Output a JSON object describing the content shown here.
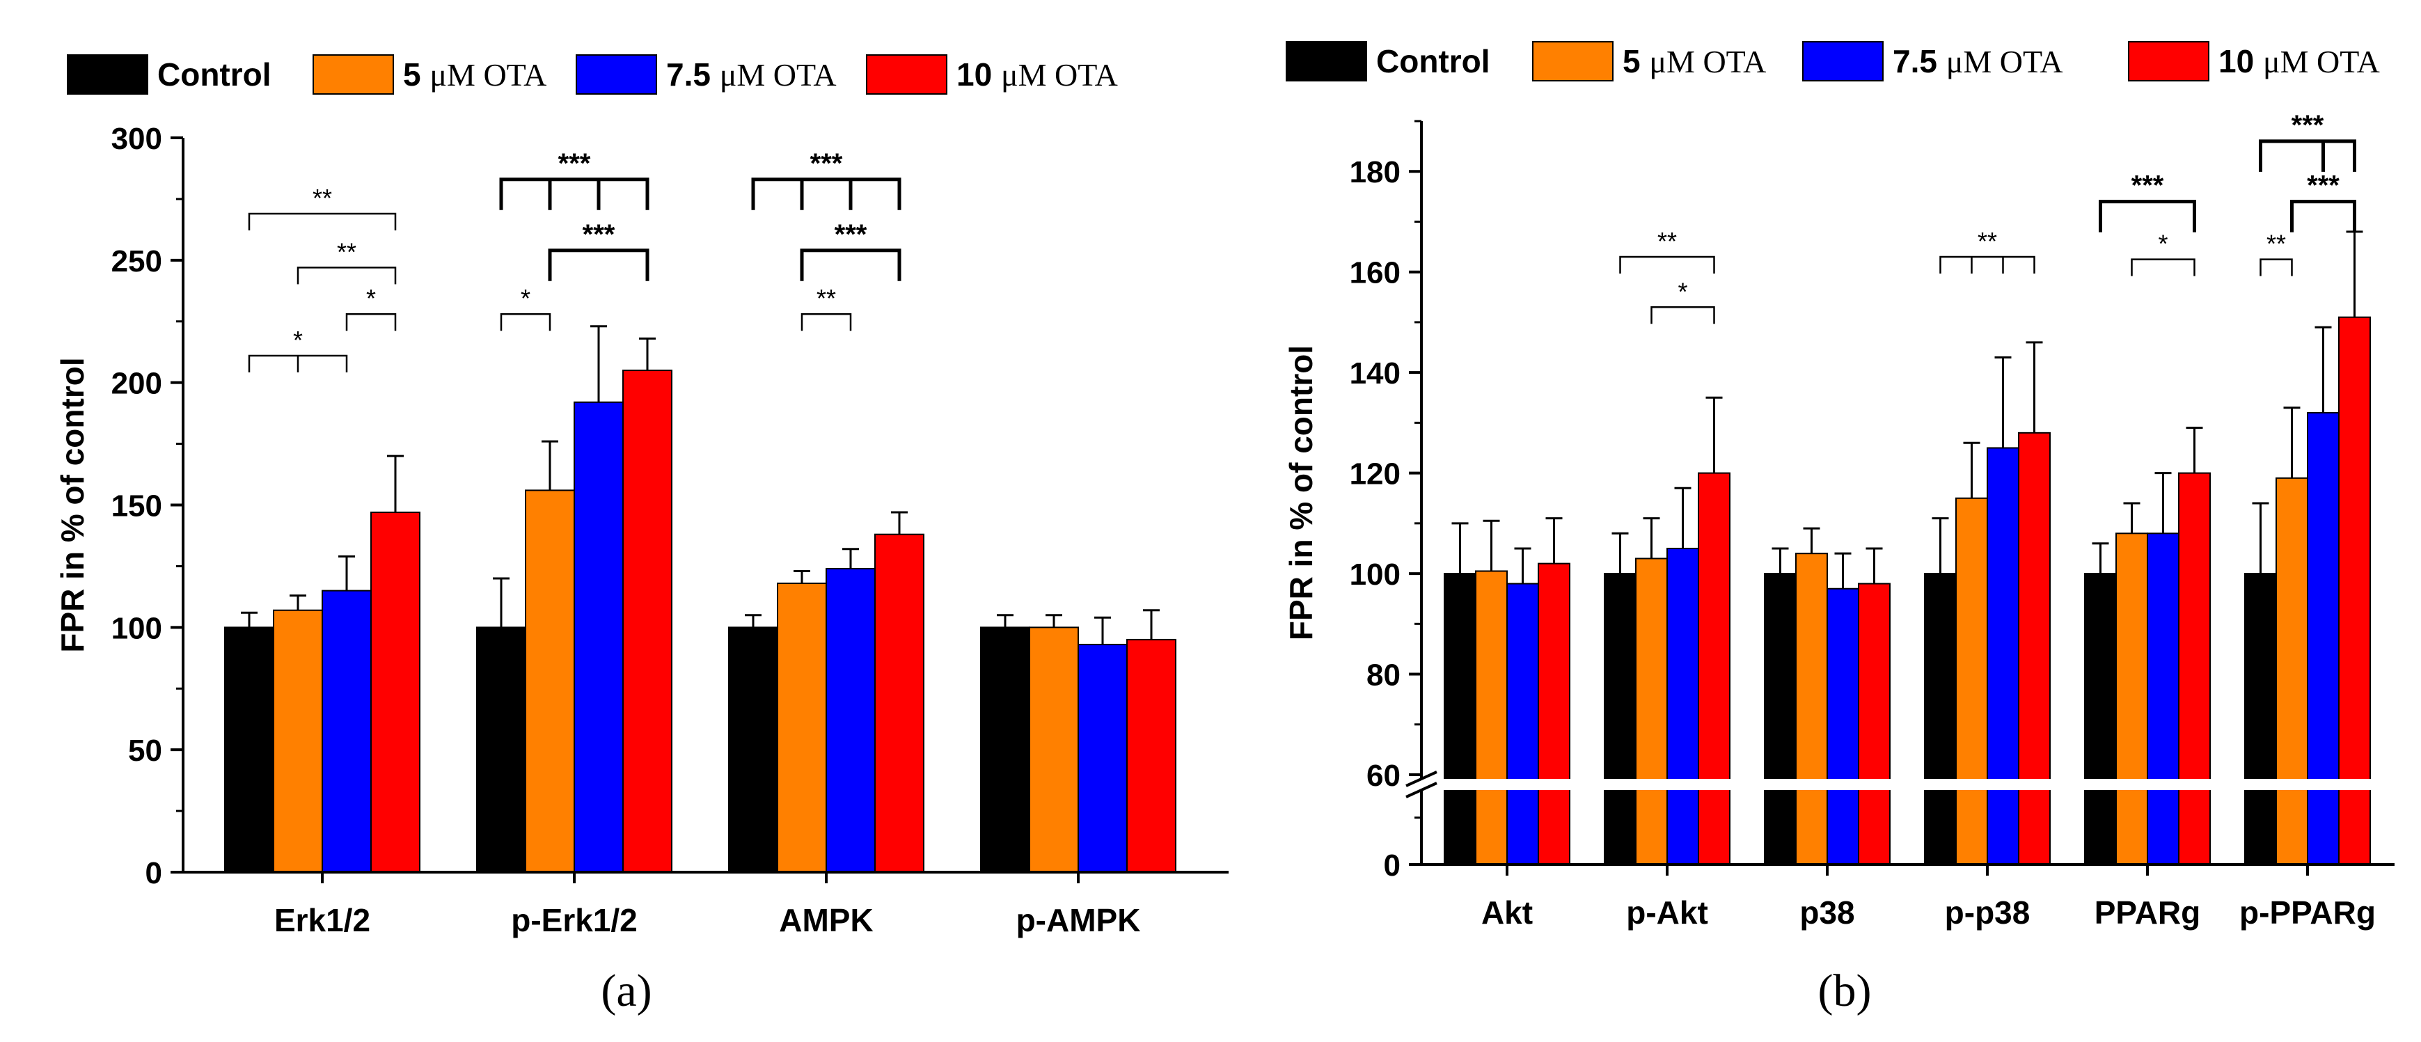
{
  "legend": [
    {
      "name": "Control",
      "prefix": "Control",
      "unit": ""
    },
    {
      "name": "5 μM OTA",
      "prefix": "5 ",
      "unit": "μM OTA"
    },
    {
      "name": "7.5 μM OTA",
      "prefix": "7.5 ",
      "unit": "μM OTA"
    },
    {
      "name": "10 μM OTA",
      "prefix": "10 ",
      "unit": "μM OTA"
    }
  ],
  "colors": [
    "#000000",
    "#ff8000",
    "#0000ff",
    "#ff0000"
  ],
  "chart_data": [
    {
      "type": "bar",
      "panel_label": "(a)",
      "ylabel": "FPR in % of control",
      "ylim": [
        0,
        300
      ],
      "yticks": [
        0,
        50,
        100,
        150,
        200,
        250,
        300
      ],
      "categories": [
        "Erk1/2",
        "p-Erk1/2",
        "AMPK",
        "p-AMPK"
      ],
      "series": [
        {
          "name": "Control",
          "values": [
            100,
            100,
            100,
            100
          ],
          "errors": [
            6,
            20,
            5,
            5
          ]
        },
        {
          "name": "5 μM OTA",
          "values": [
            107,
            156,
            118,
            100
          ],
          "errors": [
            6,
            20,
            5,
            5
          ]
        },
        {
          "name": "7.5 μM OTA",
          "values": [
            115,
            192,
            124,
            93
          ],
          "errors": [
            14,
            31,
            8,
            11
          ]
        },
        {
          "name": "10 μM OTA",
          "values": [
            147,
            205,
            138,
            95
          ],
          "errors": [
            23,
            13,
            9,
            12
          ]
        }
      ],
      "annotations": [
        {
          "cat": 0,
          "from": 0,
          "to": 3,
          "y": 269,
          "label": "**",
          "bold": false,
          "ticks": []
        },
        {
          "cat": 0,
          "from": 1,
          "to": 3,
          "y": 247,
          "label": "**",
          "bold": false,
          "ticks": []
        },
        {
          "cat": 0,
          "from": 2,
          "to": 3,
          "y": 228,
          "label": "*",
          "bold": false,
          "ticks": []
        },
        {
          "cat": 0,
          "from": 0,
          "to": 2,
          "y": 211,
          "label": "*",
          "bold": false,
          "ticks": [
            1
          ]
        },
        {
          "cat": 1,
          "from": 0,
          "to": 3,
          "y": 283,
          "label": "***",
          "bold": true,
          "ticks": [
            1,
            2
          ]
        },
        {
          "cat": 1,
          "from": 1,
          "to": 3,
          "y": 254,
          "label": "***",
          "bold": true,
          "ticks": []
        },
        {
          "cat": 1,
          "from": 0,
          "to": 1,
          "y": 228,
          "label": "*",
          "bold": false,
          "ticks": []
        },
        {
          "cat": 2,
          "from": 0,
          "to": 3,
          "y": 283,
          "label": "***",
          "bold": true,
          "ticks": [
            1,
            2
          ]
        },
        {
          "cat": 2,
          "from": 1,
          "to": 3,
          "y": 254,
          "label": "***",
          "bold": true,
          "ticks": []
        },
        {
          "cat": 2,
          "from": 1,
          "to": 2,
          "y": 228,
          "label": "**",
          "bold": false,
          "ticks": []
        }
      ]
    },
    {
      "type": "bar",
      "panel_label": "(b)",
      "ylabel": "FPR in % of control",
      "ylim": [
        0,
        190
      ],
      "axis_break": [
        15,
        60
      ],
      "yticks": [
        0,
        60,
        80,
        100,
        120,
        140,
        160,
        180
      ],
      "categories": [
        "Akt",
        "p-Akt",
        "p38",
        "p-p38",
        "PPARg",
        "p-PPARg"
      ],
      "series": [
        {
          "name": "Control",
          "values": [
            100,
            100,
            100,
            100,
            100,
            100
          ],
          "errors": [
            10,
            8,
            5,
            11,
            6,
            14
          ]
        },
        {
          "name": "5 μM OTA",
          "values": [
            100.5,
            103,
            104,
            115,
            108,
            119
          ],
          "errors": [
            10,
            8,
            5,
            11,
            6,
            14
          ]
        },
        {
          "name": "7.5 μM OTA",
          "values": [
            98,
            105,
            97,
            125,
            108,
            132
          ],
          "errors": [
            7,
            12,
            7,
            18,
            12,
            17
          ]
        },
        {
          "name": "10 μM OTA",
          "values": [
            102,
            120,
            98,
            128,
            120,
            151
          ],
          "errors": [
            9,
            15,
            7,
            18,
            9,
            17
          ]
        }
      ],
      "annotations": [
        {
          "cat": 1,
          "from": 0,
          "to": 3,
          "y": 163,
          "label": "**",
          "bold": false,
          "ticks": []
        },
        {
          "cat": 1,
          "from": 1,
          "to": 3,
          "y": 153,
          "label": "*",
          "bold": false,
          "ticks": []
        },
        {
          "cat": 3,
          "from": 0,
          "to": 3,
          "y": 163,
          "label": "**",
          "bold": false,
          "ticks": [
            1,
            2
          ]
        },
        {
          "cat": 4,
          "from": 0,
          "to": 3,
          "y": 174,
          "label": "***",
          "bold": true,
          "ticks": []
        },
        {
          "cat": 4,
          "from": 1,
          "to": 3,
          "y": 162.5,
          "label": "*",
          "bold": false,
          "ticks": []
        },
        {
          "cat": 5,
          "from": 0,
          "to": 3,
          "y": 186,
          "label": "***",
          "bold": true,
          "ticks": [
            2
          ]
        },
        {
          "cat": 5,
          "from": 1,
          "to": 3,
          "y": 174,
          "label": "***",
          "bold": true,
          "ticks": []
        },
        {
          "cat": 5,
          "from": 0,
          "to": 1,
          "y": 162.5,
          "label": "**",
          "bold": false,
          "ticks": []
        }
      ]
    }
  ]
}
